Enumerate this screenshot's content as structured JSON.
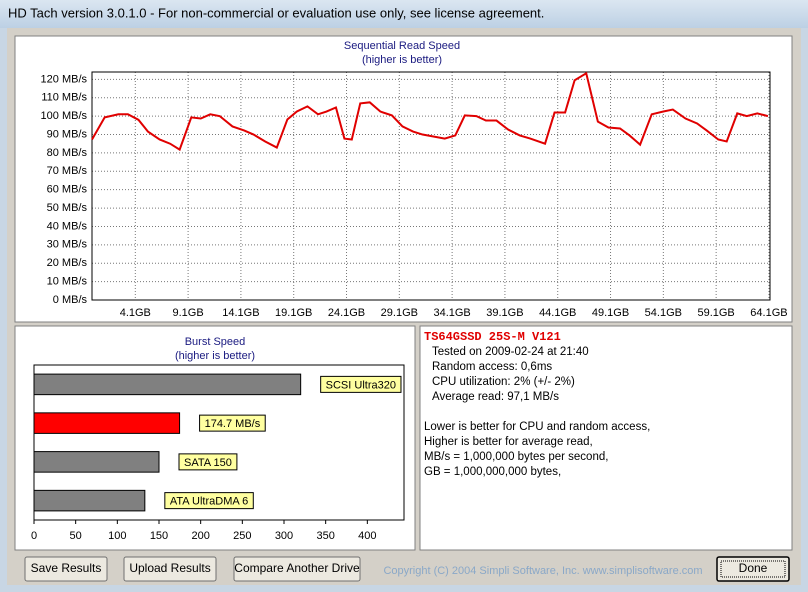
{
  "window": {
    "title": "HD Tach version 3.0.1.0  - For non-commercial or evaluation use only, see license agreement."
  },
  "chart_data": [
    {
      "type": "line",
      "title": "Sequential Read Speed",
      "subtitle": "(higher is better)",
      "x": [
        0,
        1.2,
        2.5,
        3.4,
        4.4,
        5.3,
        6.4,
        7.4,
        8.3,
        9.4,
        10.3,
        11.2,
        12.1,
        13.3,
        14.4,
        15.3,
        16.4,
        17.5,
        18.5,
        19.4,
        20.4,
        21.4,
        22.2,
        23.1,
        23.9,
        24.6,
        25.4,
        26.3,
        27.3,
        28.4,
        29.4,
        30.4,
        31.3,
        33.4,
        34.4,
        35.3,
        36.4,
        37.3,
        38.3,
        39.4,
        40.5,
        41.5,
        42.9,
        43.8,
        44.8,
        45.7,
        46.8,
        47.9,
        48.9,
        50.0,
        50.9,
        51.9,
        53.0,
        54.1,
        55.0,
        56.2,
        57.3,
        58.2,
        59.3,
        60.1,
        61.1,
        62.0,
        63.0,
        64.0
      ],
      "series": [
        {
          "color": "#e00000",
          "values": [
            87.3,
            99.3,
            101,
            101,
            98,
            91.6,
            87.3,
            85,
            81.8,
            99.3,
            98.7,
            101,
            100,
            94.4,
            92.2,
            90,
            86.2,
            82.9,
            98.2,
            102.5,
            105.3,
            101,
            102.5,
            104.7,
            87.8,
            87.3,
            106.9,
            107.5,
            102.5,
            100.4,
            94.4,
            91.6,
            90,
            87.8,
            89.5,
            100.4,
            100,
            97.6,
            97.6,
            92.7,
            89.5,
            87.8,
            85,
            102,
            102,
            119.5,
            123.3,
            97,
            93.8,
            93.3,
            89.5,
            84.5,
            101,
            102.5,
            103.6,
            98.7,
            96,
            92.2,
            87.3,
            86.2,
            101.5,
            100,
            101.5,
            100
          ]
        }
      ],
      "xlim": [
        0,
        64.2
      ],
      "xticks": [
        {
          "value": 4.1,
          "label": "4.1GB"
        },
        {
          "value": 9.1,
          "label": "9.1GB"
        },
        {
          "value": 14.1,
          "label": "14.1GB"
        },
        {
          "value": 19.1,
          "label": "19.1GB"
        },
        {
          "value": 24.1,
          "label": "24.1GB"
        },
        {
          "value": 29.1,
          "label": "29.1GB"
        },
        {
          "value": 34.1,
          "label": "34.1GB"
        },
        {
          "value": 39.1,
          "label": "39.1GB"
        },
        {
          "value": 44.1,
          "label": "44.1GB"
        },
        {
          "value": 49.1,
          "label": "49.1GB"
        },
        {
          "value": 54.1,
          "label": "54.1GB"
        },
        {
          "value": 59.1,
          "label": "59.1GB"
        },
        {
          "value": 64.1,
          "label": "64.1GB"
        }
      ],
      "ylim": [
        0,
        124
      ],
      "yticks": [
        {
          "value": 0,
          "label": "0 MB/s"
        },
        {
          "value": 10,
          "label": "10 MB/s"
        },
        {
          "value": 20,
          "label": "20 MB/s"
        },
        {
          "value": 30,
          "label": "30 MB/s"
        },
        {
          "value": 40,
          "label": "40 MB/s"
        },
        {
          "value": 50,
          "label": "50 MB/s"
        },
        {
          "value": 60,
          "label": "60 MB/s"
        },
        {
          "value": 70,
          "label": "70 MB/s"
        },
        {
          "value": 80,
          "label": "80 MB/s"
        },
        {
          "value": 90,
          "label": "90 MB/s"
        },
        {
          "value": 100,
          "label": "100 MB/s"
        },
        {
          "value": 110,
          "label": "110 MB/s"
        },
        {
          "value": 120,
          "label": "120 MB/s"
        }
      ],
      "grid": true
    },
    {
      "type": "bar",
      "orientation": "horizontal",
      "title": "Burst Speed",
      "subtitle": "(higher is better)",
      "categories": [
        "SCSI Ultra320",
        null,
        "SATA 150",
        "ATA UltraDMA 6"
      ],
      "values": [
        320,
        174.7,
        150,
        133
      ],
      "value_labels": [
        null,
        "174.7 MB/s",
        null,
        null
      ],
      "colors": [
        "#808080",
        "#ff0000",
        "#808080",
        "#808080"
      ],
      "xlim": [
        0,
        444
      ],
      "xticks": [
        0,
        50,
        100,
        150,
        200,
        250,
        300,
        350,
        400
      ]
    }
  ],
  "drive_info": {
    "name": "TS64GSSD 25S-M V121",
    "details": [
      "Tested on 2009-02-24 at 21:40",
      "Random access: 0,6ms",
      "CPU utilization: 2% (+/- 2%)",
      "Average read: 97,1 MB/s"
    ],
    "notes": [
      "Lower is better for CPU and random access,",
      "Higher is better for average read,",
      "MB/s = 1,000,000 bytes per second,",
      "GB = 1,000,000,000 bytes,"
    ]
  },
  "buttons": {
    "save": "Save Results",
    "upload": "Upload Results",
    "compare": "Compare Another Drive",
    "done": "Done"
  },
  "copyright": "Copyright (C) 2004 Simpli Software, Inc. www.simplisoftware.com"
}
